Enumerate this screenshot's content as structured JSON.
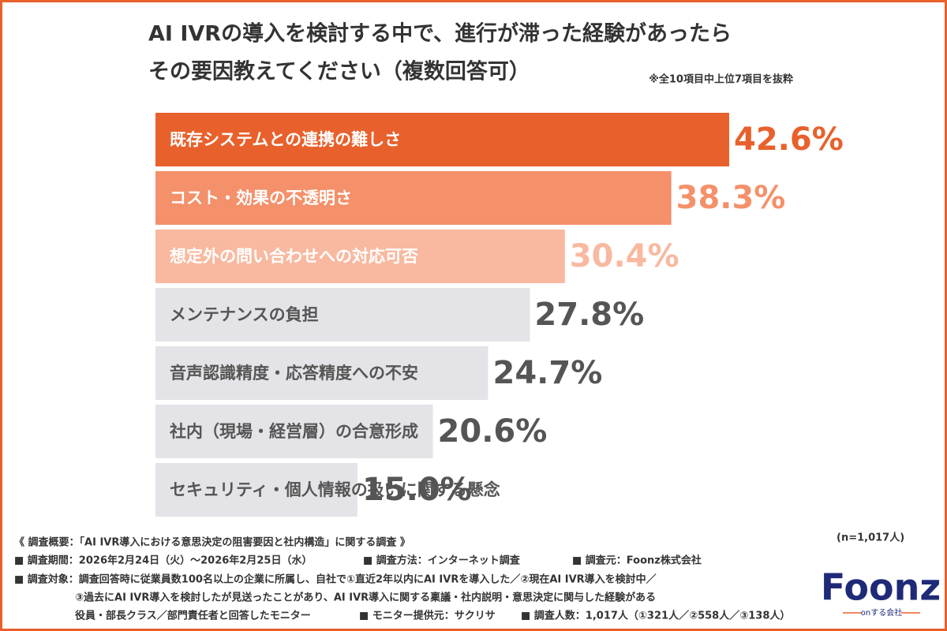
{
  "chart_data": {
    "type": "bar",
    "orientation": "horizontal",
    "title": [
      "AI IVRの導入を検討する中で、進行が滞った経験があったら",
      "その要因教えてください（複数回答可）"
    ],
    "note": "※全10項目中上位7項目を抜粋",
    "categories": [
      "既存システムとの連携の難しさ",
      "コスト・効果の不透明さ",
      "想定外の問い合わせへの対応可否",
      "メンテナンスの負担",
      "音声認識精度・応答精度への不安",
      "社内（現場・経営層）の合意形成",
      "セキュリティ・個人情報の扱いに関する懸念"
    ],
    "values": [
      42.6,
      38.3,
      30.4,
      27.8,
      24.7,
      20.6,
      15.0
    ],
    "value_labels": [
      "42.6%",
      "38.3%",
      "30.4%",
      "27.8%",
      "24.7%",
      "20.6%",
      "15.0%"
    ],
    "colors": [
      "#e8612c",
      "#f4906a",
      "#f8b9a0",
      "#e4e4e8",
      "#e4e4e8",
      "#e4e4e8",
      "#e4e4e8"
    ],
    "category_label_colors": [
      "#ffffff",
      "#ffffff",
      "#ffffff",
      "#555555",
      "#555555",
      "#555555",
      "#555555"
    ],
    "value_label_colors": [
      "#e8612c",
      "#f4906a",
      "#f8b9a0",
      "#555555",
      "#555555",
      "#555555",
      "#555555"
    ],
    "sample_size": "(n=1,017人)",
    "footer": [
      [
        "《 調査概要：「AI IVR導入における意思決定の阻害要因と社内構造」に関する調査 》"
      ],
      [
        "■ 調査期間：2026年2月24日（火）〜2026年2月25日（水）",
        "■ 調査方法：インターネット調査",
        "■ 調査元：Foonz株式会社"
      ],
      [
        "■ 調査対象：調査回答時に従業員数100名以上の企業に所属し、自社で①直近2年以内にAI IVRを導入した／②現在AI IVR導入を検討中／"
      ],
      [
        "③過去にAI IVR導入を検討したが見送ったことがあり、AI IVR導入に関する稟議・社内説明・意思決定に関与した経験がある"
      ],
      [
        "役員・部長クラス／部門責任者と回答したモニター",
        "■ モニター提供元：サクリサ",
        "■ 調査人数：1,017人（①321人／②558人／③138人）"
      ]
    ],
    "logo": {
      "name": "Foonz",
      "tagline": "onする会社"
    }
  }
}
